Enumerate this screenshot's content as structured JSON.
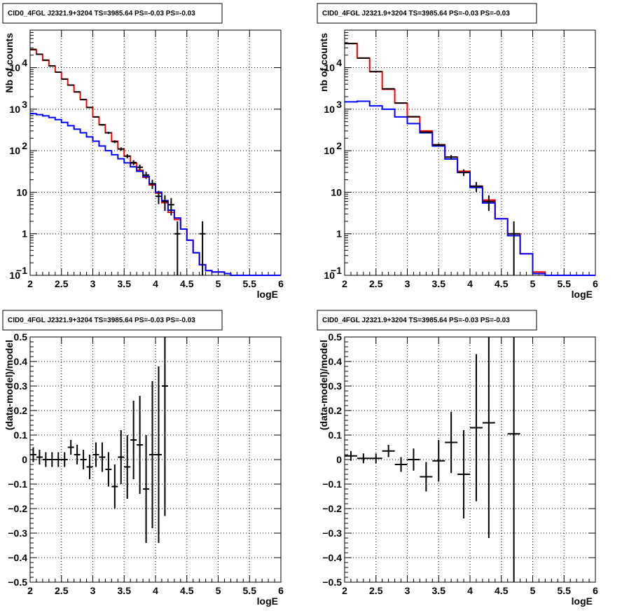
{
  "colors": {
    "model_total": "#ff0000",
    "model_source": "#0000ff",
    "data": "#000000",
    "grid": "#000000"
  },
  "chart_data": [
    {
      "type": "line",
      "title": "CID0_4FGL J2321.9+3204 TS=3985.64 PS=-0.03 PS=-0.03",
      "xlabel": "logE",
      "ylabel": "Nb of counts",
      "xlim": [
        2,
        6
      ],
      "ylim": [
        0.1,
        80000
      ],
      "yscale": "log",
      "grid": true,
      "xticks": [
        "2",
        "2.5",
        "3",
        "3.5",
        "4",
        "4.5",
        "5",
        "5.5",
        "6"
      ],
      "yticks": [
        {
          "v": 0.1,
          "t": "10",
          "sup": "−1"
        },
        {
          "v": 1,
          "t": "1"
        },
        {
          "v": 10,
          "t": "10"
        },
        {
          "v": 100,
          "t": "10",
          "sup": "2"
        },
        {
          "v": 1000,
          "t": "10",
          "sup": "3"
        },
        {
          "v": 10000,
          "t": "10",
          "sup": "4"
        }
      ],
      "bin_edges": [
        2.0,
        2.1,
        2.2,
        2.3,
        2.4,
        2.5,
        2.6,
        2.7,
        2.8,
        2.9,
        3.0,
        3.1,
        3.2,
        3.3,
        3.4,
        3.5,
        3.6,
        3.7,
        3.8,
        3.9,
        4.0,
        4.1,
        4.2,
        4.3,
        4.4,
        4.5,
        4.6,
        4.7,
        4.8,
        4.9,
        5.0,
        5.1,
        5.2,
        5.3,
        5.4,
        5.5,
        5.6,
        5.7,
        5.8,
        5.9,
        6.0
      ],
      "series": [
        {
          "values": [
            27000,
            21000,
            15000,
            11000,
            7800,
            5300,
            3800,
            2600,
            1700,
            1100,
            650,
            420,
            270,
            170,
            110,
            74,
            50,
            34,
            23,
            15,
            9.5,
            5.6,
            3.3,
            2.2,
            1.3,
            0.7,
            0.35,
            0.18,
            0.13,
            0.12,
            0.12,
            0.11,
            0.1,
            0.1,
            0.1,
            0.1,
            0.1,
            0.1,
            0.1,
            0.1
          ]
        },
        {
          "values": [
            780,
            740,
            690,
            630,
            560,
            480,
            400,
            330,
            270,
            215,
            170,
            130,
            100,
            80,
            64,
            51,
            41,
            32,
            24,
            16,
            10,
            6.3,
            3.7,
            2.4,
            1.3,
            0.7,
            0.35,
            0.18,
            0.13,
            0.12,
            0.12,
            0.11,
            0.1,
            0.1,
            0.1,
            0.1,
            0.1,
            0.1,
            0.1,
            0.1
          ]
        }
      ],
      "data_points": [
        {
          "x": 2.05,
          "y": 27500
        },
        {
          "x": 2.15,
          "y": 21000
        },
        {
          "x": 2.25,
          "y": 15200
        },
        {
          "x": 2.35,
          "y": 11000
        },
        {
          "x": 2.45,
          "y": 7800
        },
        {
          "x": 2.55,
          "y": 5300
        },
        {
          "x": 2.65,
          "y": 3800
        },
        {
          "x": 2.75,
          "y": 2600
        },
        {
          "x": 2.85,
          "y": 1700
        },
        {
          "x": 2.95,
          "y": 1100
        },
        {
          "x": 3.05,
          "y": 650
        },
        {
          "x": 3.15,
          "y": 420
        },
        {
          "x": 3.25,
          "y": 270
        },
        {
          "x": 3.35,
          "y": 165
        },
        {
          "x": 3.45,
          "y": 110
        },
        {
          "x": 3.55,
          "y": 74
        },
        {
          "x": 3.65,
          "y": 52
        },
        {
          "x": 3.75,
          "y": 40
        },
        {
          "x": 3.85,
          "y": 26
        },
        {
          "x": 3.95,
          "y": 16
        },
        {
          "x": 4.05,
          "y": 8
        },
        {
          "x": 4.15,
          "y": 6
        },
        {
          "x": 4.25,
          "y": 5
        },
        {
          "x": 4.35,
          "y": 1
        },
        {
          "x": 4.75,
          "y": 1
        }
      ]
    },
    {
      "type": "line",
      "title": "CID0_4FGL J2321.9+3204 TS=3985.64 PS=-0.03 PS=-0.03",
      "xlabel": "logE",
      "ylabel": "nb of counts",
      "xlim": [
        2,
        6
      ],
      "ylim": [
        0.1,
        80000
      ],
      "yscale": "log",
      "grid": true,
      "xticks": [
        "2",
        "2.5",
        "3",
        "3.5",
        "4",
        "4.5",
        "5",
        "5.5",
        "6"
      ],
      "yticks": [
        {
          "v": 0.1,
          "t": "10",
          "sup": "−1"
        },
        {
          "v": 1,
          "t": "1"
        },
        {
          "v": 10,
          "t": "10"
        },
        {
          "v": 100,
          "t": "10",
          "sup": "2"
        },
        {
          "v": 1000,
          "t": "10",
          "sup": "3"
        },
        {
          "v": 10000,
          "t": "10",
          "sup": "4"
        }
      ],
      "bin_edges": [
        2.0,
        2.2,
        2.4,
        2.6,
        2.8,
        3.0,
        3.2,
        3.4,
        3.6,
        3.8,
        4.0,
        4.2,
        4.4,
        4.6,
        4.8,
        5.0,
        5.2,
        5.4,
        5.6,
        5.8,
        6.0
      ],
      "series": [
        {
          "values": [
            38000,
            17000,
            8000,
            3000,
            1400,
            650,
            300,
            140,
            70,
            32,
            14,
            6.5,
            2.3,
            1.0,
            0.33,
            0.12,
            0.1,
            0.1,
            0.1,
            0.1
          ]
        },
        {
          "values": [
            1500,
            1550,
            1200,
            1000,
            650,
            450,
            270,
            130,
            63,
            30,
            13,
            5.5,
            2.3,
            0.9,
            0.33,
            0.11,
            0.1,
            0.1,
            0.1,
            0.1
          ]
        }
      ],
      "data_points": [
        {
          "x": 2.1,
          "y": 38000
        },
        {
          "x": 2.3,
          "y": 17000
        },
        {
          "x": 2.5,
          "y": 8000
        },
        {
          "x": 2.7,
          "y": 3100
        },
        {
          "x": 2.9,
          "y": 1400
        },
        {
          "x": 3.1,
          "y": 660
        },
        {
          "x": 3.3,
          "y": 280
        },
        {
          "x": 3.5,
          "y": 138
        },
        {
          "x": 3.7,
          "y": 70
        },
        {
          "x": 3.9,
          "y": 30
        },
        {
          "x": 4.1,
          "y": 14
        },
        {
          "x": 4.3,
          "y": 6
        },
        {
          "x": 4.7,
          "y": 1
        }
      ]
    },
    {
      "type": "scatter",
      "title": "CID0_4FGL J2321.9+3204 TS=3985.64 PS=-0.03 PS=-0.03",
      "xlabel": "logE",
      "ylabel": "(data-model)/model",
      "xlim": [
        2,
        6
      ],
      "ylim": [
        -0.5,
        0.5
      ],
      "grid": true,
      "xticks": [
        "2",
        "2.5",
        "3",
        "3.5",
        "4",
        "4.5",
        "5",
        "5.5",
        "6"
      ],
      "yticks": [
        "−0.5",
        "−0.4",
        "−0.3",
        "−0.2",
        "−0.1",
        "0",
        "0.1",
        "0.2",
        "0.3",
        "0.4",
        "0.5"
      ],
      "bin_width": 0.1,
      "points": [
        {
          "x": 2.05,
          "y": 0.02,
          "err": 0.03
        },
        {
          "x": 2.15,
          "y": 0.01,
          "err": 0.03
        },
        {
          "x": 2.25,
          "y": 0.0,
          "err": 0.03
        },
        {
          "x": 2.35,
          "y": 0.0,
          "err": 0.03
        },
        {
          "x": 2.45,
          "y": 0.0,
          "err": 0.03
        },
        {
          "x": 2.55,
          "y": 0.0,
          "err": 0.03
        },
        {
          "x": 2.65,
          "y": 0.05,
          "err": 0.03
        },
        {
          "x": 2.75,
          "y": 0.02,
          "err": 0.04
        },
        {
          "x": 2.85,
          "y": 0.0,
          "err": 0.04
        },
        {
          "x": 2.95,
          "y": -0.03,
          "err": 0.05
        },
        {
          "x": 3.05,
          "y": 0.02,
          "err": 0.05
        },
        {
          "x": 3.15,
          "y": 0.01,
          "err": 0.06
        },
        {
          "x": 3.25,
          "y": -0.04,
          "err": 0.07
        },
        {
          "x": 3.35,
          "y": -0.11,
          "err": 0.09
        },
        {
          "x": 3.45,
          "y": 0.01,
          "err": 0.11
        },
        {
          "x": 3.55,
          "y": -0.03,
          "err": 0.13
        },
        {
          "x": 3.65,
          "y": 0.08,
          "err": 0.16
        },
        {
          "x": 3.75,
          "y": 0.06,
          "err": 0.2
        },
        {
          "x": 3.85,
          "y": -0.12,
          "err": 0.22
        },
        {
          "x": 3.95,
          "y": 0.02,
          "err": 0.3
        },
        {
          "x": 4.05,
          "y": 0.02,
          "err": 0.36
        },
        {
          "x": 4.15,
          "y": 0.3,
          "err": 0.53
        }
      ]
    },
    {
      "type": "scatter",
      "title": "CID0_4FGL J2321.9+3204 TS=3985.64 PS=-0.03 PS=-0.03",
      "xlabel": "logE",
      "ylabel": "(data-model)/model",
      "xlim": [
        2,
        6
      ],
      "ylim": [
        -0.5,
        0.5
      ],
      "grid": true,
      "xticks": [
        "2",
        "2.5",
        "3",
        "3.5",
        "4",
        "4.5",
        "5",
        "5.5",
        "6"
      ],
      "yticks": [
        "−0.5",
        "−0.4",
        "−0.3",
        "−0.2",
        "−0.1",
        "0",
        "0.1",
        "0.2",
        "0.3",
        "0.4",
        "0.5"
      ],
      "bin_width": 0.2,
      "points": [
        {
          "x": 2.1,
          "y": 0.015,
          "err": 0.02
        },
        {
          "x": 2.3,
          "y": 0.005,
          "err": 0.02
        },
        {
          "x": 2.5,
          "y": 0.005,
          "err": 0.02
        },
        {
          "x": 2.7,
          "y": 0.035,
          "err": 0.025
        },
        {
          "x": 2.9,
          "y": -0.02,
          "err": 0.03
        },
        {
          "x": 3.1,
          "y": 0.0,
          "err": 0.045
        },
        {
          "x": 3.3,
          "y": -0.07,
          "err": 0.06
        },
        {
          "x": 3.5,
          "y": -0.005,
          "err": 0.085
        },
        {
          "x": 3.7,
          "y": 0.07,
          "err": 0.125
        },
        {
          "x": 3.9,
          "y": -0.06,
          "err": 0.18
        },
        {
          "x": 4.1,
          "y": 0.13,
          "err": 0.3
        },
        {
          "x": 4.3,
          "y": 0.15,
          "err": 0.47
        },
        {
          "x": 4.7,
          "y": 0.105,
          "err": 0.7
        }
      ]
    }
  ]
}
